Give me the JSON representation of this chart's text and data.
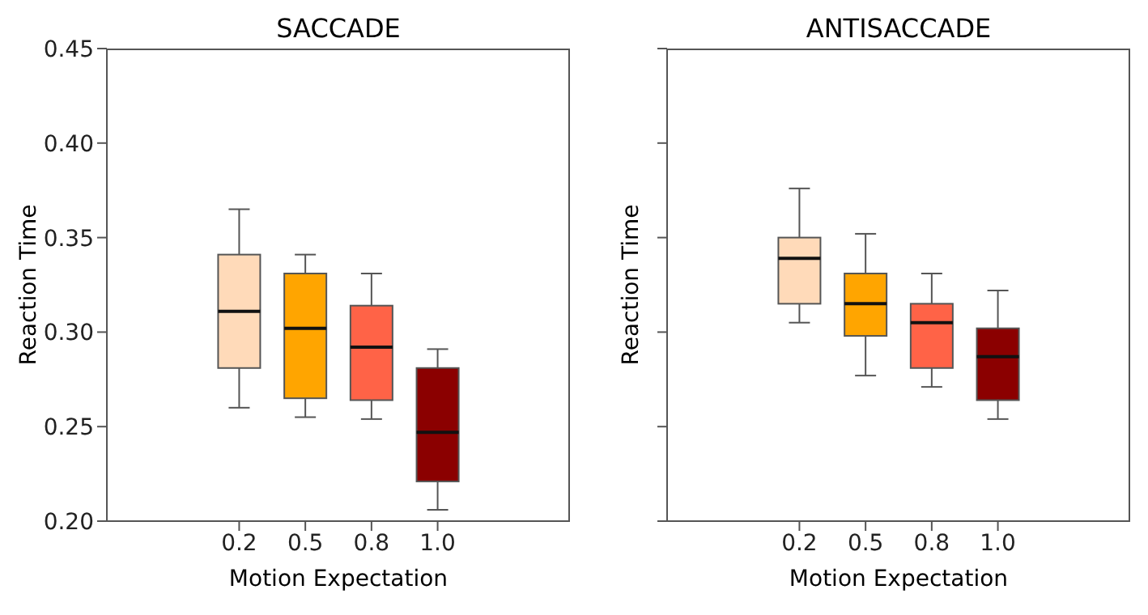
{
  "chart_data": [
    {
      "type": "box",
      "title": "SACCADE",
      "xlabel": "Motion Expectation",
      "ylabel": "Reaction Time",
      "categories": [
        "0.2",
        "0.5",
        "0.8",
        "1.0"
      ],
      "colors": [
        "#ffdab9",
        "#ffa500",
        "#ff6347",
        "#8b0000"
      ],
      "boxes": [
        {
          "low": 0.26,
          "q1": 0.281,
          "median": 0.311,
          "q3": 0.341,
          "high": 0.365
        },
        {
          "low": 0.255,
          "q1": 0.265,
          "median": 0.302,
          "q3": 0.331,
          "high": 0.341
        },
        {
          "low": 0.254,
          "q1": 0.264,
          "median": 0.292,
          "q3": 0.314,
          "high": 0.331
        },
        {
          "low": 0.206,
          "q1": 0.221,
          "median": 0.247,
          "q3": 0.281,
          "high": 0.291
        }
      ],
      "ylim": [
        0.2,
        0.45
      ],
      "yticks": [
        {
          "value": 0.2,
          "label": "0.20"
        },
        {
          "value": 0.25,
          "label": "0.25"
        },
        {
          "value": 0.3,
          "label": "0.30"
        },
        {
          "value": 0.35,
          "label": "0.35"
        },
        {
          "value": 0.4,
          "label": "0.40"
        },
        {
          "value": 0.45,
          "label": "0.45"
        }
      ]
    },
    {
      "type": "box",
      "title": "ANTISACCADE",
      "xlabel": "Motion Expectation",
      "ylabel": "Reaction Time",
      "categories": [
        "0.2",
        "0.5",
        "0.8",
        "1.0"
      ],
      "colors": [
        "#ffdab9",
        "#ffa500",
        "#ff6347",
        "#8b0000"
      ],
      "boxes": [
        {
          "low": 0.305,
          "q1": 0.315,
          "median": 0.339,
          "q3": 0.35,
          "high": 0.376
        },
        {
          "low": 0.277,
          "q1": 0.298,
          "median": 0.315,
          "q3": 0.331,
          "high": 0.352
        },
        {
          "low": 0.271,
          "q1": 0.281,
          "median": 0.305,
          "q3": 0.315,
          "high": 0.331
        },
        {
          "low": 0.254,
          "q1": 0.264,
          "median": 0.287,
          "q3": 0.302,
          "high": 0.322
        }
      ],
      "ylim": [
        0.2,
        0.45
      ],
      "yticks": [
        {
          "value": 0.2,
          "label": null
        },
        {
          "value": 0.25,
          "label": null
        },
        {
          "value": 0.3,
          "label": null
        },
        {
          "value": 0.35,
          "label": null
        },
        {
          "value": 0.4,
          "label": null
        },
        {
          "value": 0.45,
          "label": null
        }
      ],
      "tick_labels": "x"
    }
  ]
}
